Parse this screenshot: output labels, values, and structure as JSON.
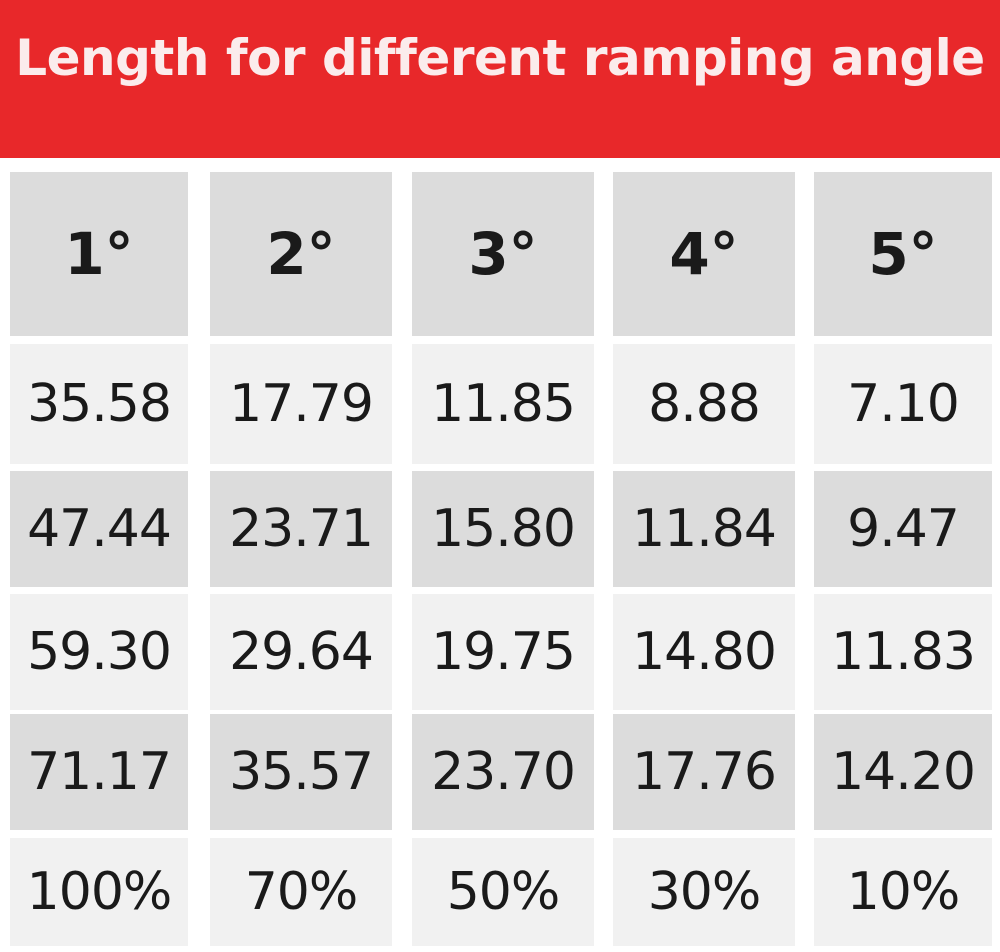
{
  "title": "Length for different ramping angle",
  "table": {
    "headers": [
      "1°",
      "2°",
      "3°",
      "4°",
      "5°"
    ],
    "rows": [
      [
        "35.58",
        "17.79",
        "11.85",
        "8.88",
        "7.10"
      ],
      [
        "47.44",
        "23.71",
        "15.80",
        "11.84",
        "9.47"
      ],
      [
        "59.30",
        "29.64",
        "19.75",
        "14.80",
        "11.83"
      ],
      [
        "71.17",
        "35.57",
        "23.70",
        "17.76",
        "14.20"
      ],
      [
        "100%",
        "70%",
        "50%",
        "30%",
        "10%"
      ]
    ]
  },
  "colors": {
    "banner": "#e8282a",
    "header_cell": "#dcdcdc",
    "row_dark": "#dcdcdc",
    "row_light": "#f1f1f1",
    "text": "#1a1a1a"
  }
}
